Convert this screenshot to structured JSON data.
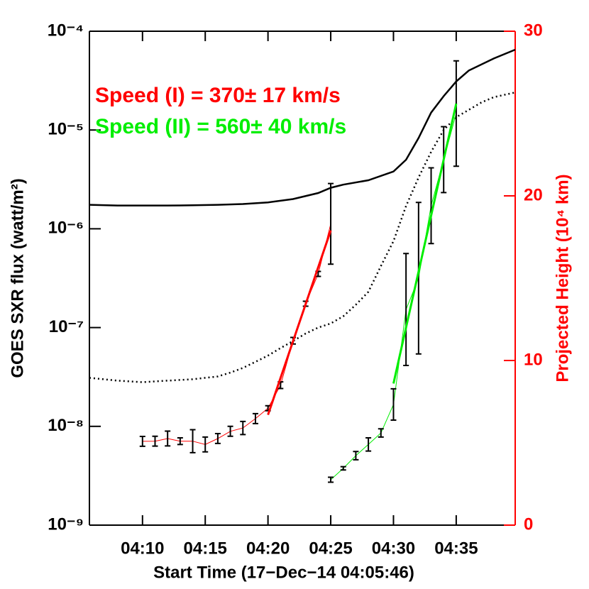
{
  "chart_data": {
    "type": "line",
    "x_label": "Start Time (17−Dec−14 04:05:46)",
    "y_label": "GOES SXR flux (watt/m²)",
    "y2_label": "Projected Height (10⁴ km)",
    "annotations": [
      {
        "text": "Speed (I) = 370± 17 km/s",
        "color": "#ff0000"
      },
      {
        "text": "Speed (II) = 560± 40 km/s",
        "color": "#00ee00"
      }
    ],
    "xlim": [
      5.77,
      39.7
    ],
    "xticks": [
      {
        "value": 10,
        "label": "04:10"
      },
      {
        "value": 15,
        "label": "04:15"
      },
      {
        "value": 20,
        "label": "04:20"
      },
      {
        "value": 25,
        "label": "04:25"
      },
      {
        "value": 30,
        "label": "04:30"
      },
      {
        "value": 35,
        "label": "04:35"
      }
    ],
    "ylim": [
      1e-09,
      0.0001
    ],
    "ylog": true,
    "yticks": [
      {
        "value": 1e-09,
        "label": "10⁻⁹"
      },
      {
        "value": 1e-08,
        "label": "10⁻⁸"
      },
      {
        "value": 1e-07,
        "label": "10⁻⁷"
      },
      {
        "value": 1e-06,
        "label": "10⁻⁶"
      },
      {
        "value": 1e-05,
        "label": "10⁻⁵"
      },
      {
        "value": 0.0001,
        "label": "10⁻⁴"
      }
    ],
    "y2lim": [
      0,
      30
    ],
    "y2ticks": [
      0,
      10,
      20,
      30
    ],
    "y2color": "#ff0000",
    "series": [
      {
        "color": "#000000",
        "style": "solid",
        "x": [
          5.77,
          8,
          10,
          12,
          14,
          16,
          18,
          20,
          22,
          24,
          25,
          26,
          28,
          30,
          31,
          32,
          33,
          34,
          35,
          36,
          38,
          39.7
        ],
        "values": [
          1.75e-06,
          1.72e-06,
          1.72e-06,
          1.72e-06,
          1.73e-06,
          1.75e-06,
          1.78e-06,
          1.85e-06,
          2e-06,
          2.3e-06,
          2.6e-06,
          2.8e-06,
          3.1e-06,
          3.8e-06,
          5e-06,
          8.3e-06,
          1.5e-05,
          2.2e-05,
          3.1e-05,
          4e-05,
          5.3e-05,
          6.5e-05
        ]
      },
      {
        "color": "#000000",
        "style": "dotted",
        "x": [
          5.77,
          8,
          10,
          12,
          14,
          16,
          17,
          18,
          19,
          20,
          21,
          22,
          23,
          24,
          25,
          26,
          27,
          28,
          29,
          30,
          31,
          32,
          33,
          34,
          35,
          36,
          37,
          38,
          39.7
        ],
        "values": [
          3.1e-08,
          2.9e-08,
          2.8e-08,
          2.9e-08,
          3e-08,
          3.2e-08,
          3.5e-08,
          3.9e-08,
          4.5e-08,
          5.2e-08,
          6.2e-08,
          7.3e-08,
          8.7e-08,
          1e-07,
          1.1e-07,
          1.3e-07,
          1.7e-07,
          2.3e-07,
          4.2e-07,
          7.5e-07,
          1.7e-06,
          3.3e-06,
          6e-06,
          1e-05,
          1.35e-05,
          1.6e-05,
          1.9e-05,
          2.15e-05,
          2.4e-05
        ]
      },
      {
        "color": "#ff0000",
        "style": "solid",
        "axis": "y2",
        "x": [
          10,
          11,
          12,
          13,
          14,
          15,
          16,
          17,
          18,
          19,
          20,
          21,
          22,
          23,
          24,
          25
        ],
        "values": [
          5.09,
          5.1,
          5.26,
          5.1,
          5.1,
          4.9,
          5.26,
          5.7,
          5.9,
          6.47,
          7.1,
          8.5,
          11.2,
          13.45,
          15.26,
          18.3
        ],
        "errors": [
          0.3,
          0.3,
          0.45,
          0.2,
          0.7,
          0.45,
          0.3,
          0.3,
          0.4,
          0.3,
          0.15,
          0.2,
          0.2,
          0.15,
          0.15,
          2.45
        ]
      },
      {
        "color": "#00ee00",
        "style": "solid",
        "axis": "y2",
        "x": [
          25,
          26,
          27,
          28,
          29,
          30,
          31,
          32,
          33,
          34,
          35
        ],
        "values": [
          2.76,
          3.45,
          4.22,
          4.9,
          5.6,
          7.33,
          13.1,
          15.0,
          19.4,
          22.2,
          25.0
        ],
        "errors": [
          0.15,
          0.1,
          0.25,
          0.4,
          0.25,
          0.95,
          3.4,
          4.6,
          2.3,
          2.0,
          3.2
        ]
      }
    ],
    "fit_lines": [
      {
        "color": "#ff0000",
        "x": [
          20,
          25
        ],
        "values": [
          6.7,
          17.9
        ]
      },
      {
        "color": "#00ee00",
        "x": [
          30,
          35
        ],
        "values": [
          8.6,
          25.6
        ]
      }
    ]
  }
}
